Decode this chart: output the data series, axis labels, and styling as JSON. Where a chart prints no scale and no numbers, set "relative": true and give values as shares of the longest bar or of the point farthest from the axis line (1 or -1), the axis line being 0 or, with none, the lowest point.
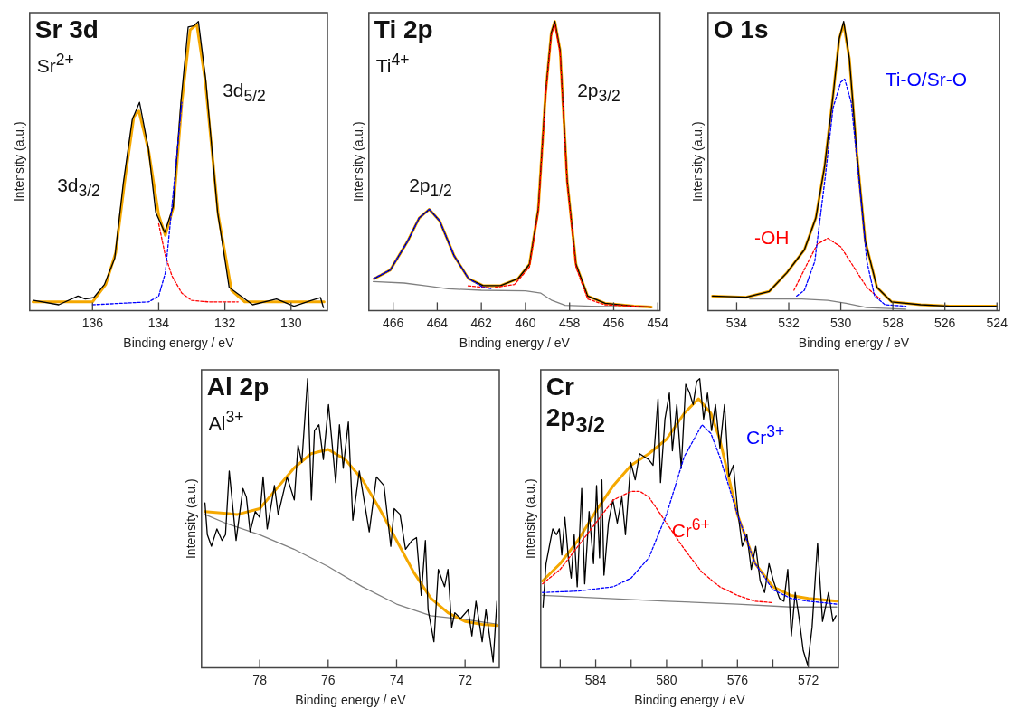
{
  "chart_data": [
    {
      "type": "line",
      "title": "Sr 3d",
      "xlabel": "Binding energy / eV",
      "ylabel": "Intensity (a.u.)",
      "xlim": [
        137.9,
        128.9
      ],
      "xticks": [
        136,
        134,
        132,
        130
      ],
      "relative": true,
      "annotations": [
        "Sr$^{2+}$",
        "3d$_{3/2}$",
        "3d$_{5/2}$"
      ],
      "series": [
        {
          "color": "#0000ff",
          "line_style": "dashed",
          "x": [
            136.0,
            134.3,
            134.0,
            133.8,
            133.6,
            133.3
          ],
          "values": [
            0.02,
            0.03,
            0.05,
            0.13,
            0.36,
            0.72
          ]
        },
        {
          "color": "#ff0000",
          "line_style": "dashed",
          "x": [
            134.0,
            133.8,
            133.6,
            133.3,
            133.0,
            132.5,
            131.6
          ],
          "values": [
            0.3,
            0.19,
            0.12,
            0.06,
            0.035,
            0.03,
            0.03
          ]
        },
        {
          "color": "#000000",
          "x": [
            137.78,
            137.02,
            136.44,
            136.22,
            135.96,
            135.64,
            135.33,
            135.07,
            134.8,
            134.58,
            134.31,
            134.09,
            133.82,
            133.56,
            133.33,
            133.11,
            132.93,
            132.8,
            132.58,
            132.22,
            131.87,
            131.51,
            131.16,
            130.44,
            129.91,
            129.38,
            129.11,
            129.02
          ],
          "values": [
            0.035,
            0.02,
            0.05,
            0.04,
            0.045,
            0.09,
            0.18,
            0.44,
            0.66,
            0.72,
            0.56,
            0.34,
            0.27,
            0.36,
            0.72,
            0.98,
            0.985,
            1.0,
            0.8,
            0.34,
            0.08,
            0.05,
            0.02,
            0.04,
            0.015,
            0.035,
            0.045,
            0.01
          ]
        },
        {
          "color": "#f5a800",
          "x": [
            137.8,
            136.0,
            135.6,
            135.3,
            135.0,
            134.75,
            134.6,
            134.3,
            134.0,
            133.8,
            133.55,
            133.3,
            133.05,
            132.85,
            132.6,
            132.2,
            131.8,
            131.4,
            129.0
          ],
          "values": [
            0.03,
            0.03,
            0.09,
            0.2,
            0.47,
            0.67,
            0.69,
            0.55,
            0.33,
            0.26,
            0.36,
            0.72,
            0.97,
            0.99,
            0.8,
            0.33,
            0.07,
            0.03,
            0.03
          ]
        }
      ]
    },
    {
      "type": "line",
      "title": "Ti 2p",
      "xlabel": "Binding energy / eV",
      "ylabel": "Intensity (a.u.)",
      "xlim": [
        467.1,
        453.9
      ],
      "xticks": [
        466,
        464,
        462,
        460,
        458,
        456,
        454
      ],
      "relative": true,
      "annotations": [
        "Ti$^{4+}$",
        "2p$_{1/2}$",
        "2p$_{3/2}$"
      ],
      "series": [
        {
          "color": "#0000ff",
          "line_style": "dashed",
          "x": [
            466.9,
            466.13,
            465.34,
            464.82,
            464.36,
            463.89,
            463.24,
            462.58,
            461.92,
            461.5
          ],
          "values": [
            0.11,
            0.14,
            0.24,
            0.32,
            0.35,
            0.31,
            0.19,
            0.11,
            0.08,
            0.075
          ]
        },
        {
          "color": "#ff0000",
          "line_style": "dashed",
          "x": [
            462.6,
            461.5,
            460.5,
            459.82,
            459.42,
            459.09,
            458.83,
            458.67,
            458.43,
            458.11,
            457.71,
            457.18,
            456.4,
            454.3
          ],
          "values": [
            0.085,
            0.078,
            0.09,
            0.15,
            0.34,
            0.74,
            0.95,
            0.99,
            0.89,
            0.44,
            0.15,
            0.04,
            0.02,
            0.012
          ]
        },
        {
          "color": "#000000",
          "x": [
            466.86,
            466.13,
            465.34,
            464.82,
            464.36,
            463.89,
            463.24,
            462.58,
            461.92,
            461.13,
            460.34,
            459.82,
            459.42,
            459.09,
            458.83,
            458.67,
            458.43,
            458.11,
            457.71,
            457.18,
            456.39,
            455.08,
            454.29
          ],
          "values": [
            0.11,
            0.14,
            0.24,
            0.32,
            0.35,
            0.31,
            0.19,
            0.11,
            0.086,
            0.086,
            0.11,
            0.16,
            0.35,
            0.75,
            0.96,
            1.0,
            0.9,
            0.45,
            0.16,
            0.05,
            0.025,
            0.015,
            0.012
          ]
        },
        {
          "color": "#f5a800",
          "x": [
            466.86,
            466.13,
            465.34,
            464.82,
            464.36,
            463.89,
            463.24,
            462.58,
            461.92,
            461.13,
            460.34,
            459.82,
            459.42,
            459.09,
            458.83,
            458.67,
            458.43,
            458.11,
            457.71,
            457.18,
            456.39,
            455.08,
            454.29
          ],
          "values": [
            0.11,
            0.14,
            0.24,
            0.32,
            0.35,
            0.31,
            0.19,
            0.11,
            0.086,
            0.086,
            0.11,
            0.16,
            0.35,
            0.75,
            0.96,
            1.0,
            0.9,
            0.45,
            0.16,
            0.05,
            0.025,
            0.015,
            0.012
          ]
        },
        {
          "color": "#808080",
          "x": [
            466.9,
            465.5,
            464.5,
            463.5,
            462.0,
            460.0,
            459.3,
            458.8,
            458.2,
            457.0,
            454.3
          ],
          "values": [
            0.1,
            0.095,
            0.085,
            0.075,
            0.07,
            0.068,
            0.06,
            0.035,
            0.018,
            0.015,
            0.012
          ]
        }
      ]
    },
    {
      "type": "line",
      "title": "O 1s",
      "xlabel": "Binding energy / eV",
      "ylabel": "Intensity (a.u.)",
      "xlim": [
        535.1,
        523.9
      ],
      "xticks": [
        534,
        532,
        530,
        528,
        526,
        524
      ],
      "relative": true,
      "series": [
        {
          "name": "Ti-O/Sr-O",
          "color": "#0000ff",
          "line_style": "dashed",
          "x": [
            531.7,
            531.4,
            531.0,
            530.6,
            530.3,
            530.0,
            529.85,
            529.6,
            529.3,
            529.0,
            528.7,
            528.3,
            527.5
          ],
          "values": [
            0.05,
            0.07,
            0.17,
            0.46,
            0.7,
            0.79,
            0.8,
            0.72,
            0.45,
            0.17,
            0.05,
            0.02,
            0.015
          ]
        },
        {
          "name": "-OH",
          "color": "#ff0000",
          "line_style": "dashed",
          "x": [
            531.8,
            531.3,
            530.9,
            530.5,
            530.0,
            529.5,
            529.0,
            528.5
          ],
          "values": [
            0.07,
            0.16,
            0.23,
            0.25,
            0.22,
            0.15,
            0.08,
            0.04
          ]
        },
        {
          "color": "#000000",
          "x": [
            534.93,
            533.64,
            532.75,
            532.08,
            531.4,
            530.96,
            530.62,
            530.29,
            530.06,
            529.89,
            529.67,
            529.39,
            529.06,
            528.61,
            528.05,
            526.93,
            525.81,
            524.02
          ],
          "values": [
            0.05,
            0.046,
            0.066,
            0.13,
            0.21,
            0.32,
            0.5,
            0.75,
            0.94,
            1.0,
            0.87,
            0.55,
            0.24,
            0.08,
            0.03,
            0.02,
            0.015,
            0.015
          ]
        },
        {
          "color": "#f5a800",
          "x": [
            534.93,
            533.64,
            532.75,
            532.08,
            531.4,
            530.96,
            530.62,
            530.29,
            530.06,
            529.89,
            529.67,
            529.39,
            529.06,
            528.61,
            528.05,
            526.93,
            525.81,
            524.02
          ],
          "values": [
            0.05,
            0.046,
            0.066,
            0.13,
            0.21,
            0.32,
            0.5,
            0.75,
            0.94,
            0.99,
            0.87,
            0.55,
            0.24,
            0.08,
            0.03,
            0.02,
            0.015,
            0.015
          ]
        },
        {
          "color": "#808080",
          "x": [
            533.5,
            531.5,
            530.5,
            529.8,
            529.0,
            527.5
          ],
          "values": [
            0.04,
            0.04,
            0.035,
            0.025,
            0.01,
            0.005
          ]
        }
      ]
    },
    {
      "type": "line",
      "title": "Al 2p",
      "xlabel": "Binding energy / eV",
      "ylabel": "Intensity (a.u.)",
      "xlim": [
        79.7,
        71.0
      ],
      "xticks": [
        78,
        76,
        74,
        72
      ],
      "relative": true,
      "annotations": [
        "Al$^{3+}$"
      ],
      "series": [
        {
          "color": "#000000",
          "x": [
            79.6,
            79.53,
            79.41,
            79.25,
            79.1,
            79.0,
            78.89,
            78.69,
            78.49,
            78.39,
            78.28,
            78.13,
            78.0,
            77.9,
            77.78,
            77.57,
            77.46,
            77.2,
            76.99,
            76.88,
            76.77,
            76.6,
            76.49,
            76.4,
            76.27,
            76.14,
            75.99,
            75.78,
            75.67,
            75.56,
            75.41,
            75.28,
            75.09,
            74.8,
            74.59,
            74.37,
            74.17,
            74.07,
            73.9,
            73.74,
            73.55,
            73.42,
            73.28,
            73.16,
            73.08,
            72.91,
            72.78,
            72.6,
            72.5,
            72.39,
            72.3,
            72.13,
            71.91,
            71.8,
            71.68,
            71.5,
            71.39,
            71.18,
            71.07
          ],
          "values": [
            0.57,
            0.46,
            0.42,
            0.48,
            0.44,
            0.46,
            0.68,
            0.44,
            0.62,
            0.59,
            0.47,
            0.54,
            0.52,
            0.66,
            0.48,
            0.63,
            0.53,
            0.66,
            0.58,
            0.77,
            0.71,
            1.0,
            0.58,
            0.82,
            0.84,
            0.72,
            0.91,
            0.64,
            0.84,
            0.69,
            0.85,
            0.51,
            0.68,
            0.47,
            0.66,
            0.63,
            0.42,
            0.55,
            0.53,
            0.41,
            0.44,
            0.45,
            0.25,
            0.44,
            0.2,
            0.09,
            0.34,
            0.28,
            0.34,
            0.14,
            0.19,
            0.17,
            0.2,
            0.11,
            0.23,
            0.09,
            0.2,
            0.02,
            0.23
          ]
        },
        {
          "color": "#f5a800",
          "x": [
            79.6,
            78.65,
            78.0,
            77.5,
            77.0,
            76.5,
            76.0,
            75.5,
            75.0,
            74.5,
            74.0,
            73.5,
            73.0,
            72.5,
            72.0,
            71.5,
            71.05
          ],
          "values": [
            0.54,
            0.53,
            0.55,
            0.62,
            0.69,
            0.74,
            0.755,
            0.72,
            0.65,
            0.55,
            0.44,
            0.33,
            0.24,
            0.19,
            0.16,
            0.15,
            0.146
          ]
        },
        {
          "color": "#808080",
          "x": [
            79.6,
            79.0,
            78.0,
            77.0,
            76.0,
            75.0,
            74.0,
            73.0,
            72.0,
            71.05
          ],
          "values": [
            0.53,
            0.5,
            0.46,
            0.41,
            0.35,
            0.28,
            0.22,
            0.18,
            0.167,
            0.15
          ]
        }
      ]
    },
    {
      "type": "line",
      "title": "Cr 2p$_{3/2}$",
      "xlabel": "Binding energy / eV",
      "ylabel": "Intensity (a.u.)",
      "xlim": [
        587.1,
        570.3
      ],
      "xticks": [
        {
          "value": 586,
          "label": null
        },
        584,
        {
          "value": 582,
          "label": null
        },
        580,
        {
          "value": 578,
          "label": null
        },
        576,
        {
          "value": 574,
          "label": null
        },
        572
      ],
      "relative": true,
      "series": [
        {
          "name": "Cr$^{3+}$",
          "color": "#0000ff",
          "line_style": "dashed",
          "x": [
            587.0,
            585.0,
            583.0,
            582.0,
            581.0,
            580.0,
            579.0,
            578.0,
            577.5,
            577.0,
            576.0,
            575.0,
            574.0,
            573.0,
            572.0,
            570.4
          ],
          "values": [
            0.26,
            0.265,
            0.28,
            0.31,
            0.38,
            0.53,
            0.73,
            0.84,
            0.81,
            0.73,
            0.53,
            0.36,
            0.27,
            0.24,
            0.23,
            0.22
          ]
        },
        {
          "name": "Cr$^{6+}$",
          "color": "#ff0000",
          "line_style": "dashed",
          "x": [
            587.0,
            586.0,
            585.0,
            584.0,
            583.0,
            582.0,
            581.5,
            581.0,
            580.0,
            579.0,
            578.0,
            577.0,
            576.0,
            575.0,
            574.0
          ],
          "values": [
            0.29,
            0.34,
            0.42,
            0.5,
            0.58,
            0.61,
            0.61,
            0.59,
            0.5,
            0.41,
            0.33,
            0.28,
            0.25,
            0.23,
            0.225
          ]
        },
        {
          "color": "#000000",
          "x": [
            586.97,
            586.8,
            586.55,
            586.42,
            586.21,
            586.05,
            585.91,
            585.74,
            585.54,
            585.38,
            585.21,
            585.04,
            584.79,
            584.62,
            584.37,
            584.12,
            583.95,
            583.78,
            583.65,
            583.53,
            583.28,
            583.03,
            582.78,
            582.52,
            582.32,
            582.02,
            581.77,
            581.52,
            581.27,
            581.01,
            580.76,
            580.48,
            580.34,
            580.09,
            579.84,
            579.67,
            579.42,
            579.17,
            578.92,
            578.7,
            578.5,
            578.3,
            578.13,
            577.91,
            577.69,
            577.46,
            577.24,
            576.99,
            576.73,
            576.48,
            576.23,
            575.98,
            575.73,
            575.47,
            575.22,
            574.97,
            574.72,
            574.47,
            574.22,
            573.97,
            573.63,
            573.38,
            573.16,
            572.96,
            572.74,
            572.54,
            572.29,
            572.04,
            571.79,
            571.48,
            571.2,
            570.86,
            570.61,
            570.44
          ],
          "values": [
            0.21,
            0.36,
            0.44,
            0.48,
            0.46,
            0.48,
            0.39,
            0.52,
            0.38,
            0.31,
            0.46,
            0.28,
            0.62,
            0.29,
            0.54,
            0.36,
            0.63,
            0.38,
            0.65,
            0.32,
            0.5,
            0.58,
            0.5,
            0.59,
            0.46,
            0.71,
            0.65,
            0.74,
            0.73,
            0.72,
            0.7,
            0.93,
            0.64,
            0.86,
            0.95,
            0.75,
            0.91,
            0.69,
            0.98,
            0.95,
            0.91,
            0.99,
            1.0,
            0.86,
            0.95,
            0.82,
            0.91,
            0.76,
            0.91,
            0.66,
            0.7,
            0.54,
            0.42,
            0.46,
            0.34,
            0.42,
            0.3,
            0.26,
            0.36,
            0.3,
            0.24,
            0.23,
            0.34,
            0.11,
            0.26,
            0.18,
            0.06,
            0.01,
            0.14,
            0.43,
            0.16,
            0.26,
            0.16,
            0.18
          ]
        },
        {
          "color": "#f5a800",
          "x": [
            587.0,
            586.0,
            585.0,
            584.0,
            583.0,
            582.0,
            581.0,
            580.0,
            579.0,
            578.2,
            577.5,
            577.0,
            576.5,
            576.0,
            575.0,
            574.0,
            573.0,
            572.0,
            570.4
          ],
          "values": [
            0.3,
            0.36,
            0.44,
            0.54,
            0.63,
            0.7,
            0.74,
            0.79,
            0.88,
            0.93,
            0.88,
            0.79,
            0.66,
            0.53,
            0.36,
            0.28,
            0.25,
            0.24,
            0.23
          ]
        },
        {
          "color": "#808080",
          "x": [
            587.0,
            580.0,
            576.0,
            573.0,
            570.4
          ],
          "values": [
            0.25,
            0.23,
            0.22,
            0.21,
            0.21
          ]
        }
      ]
    }
  ]
}
